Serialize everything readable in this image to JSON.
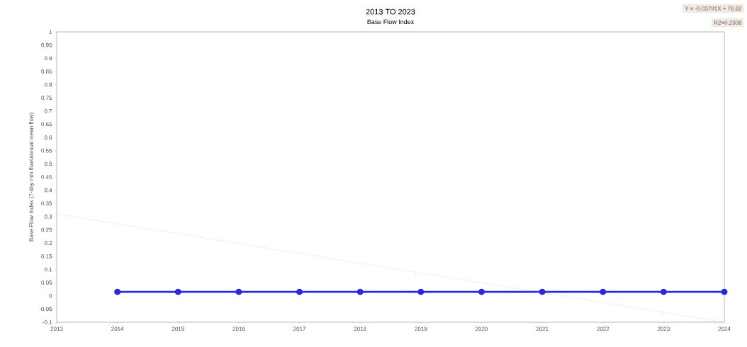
{
  "chart_data": {
    "type": "line",
    "title": "2013 TO 2023",
    "subtitle": "Base Flow Index",
    "ylabel": "Base Flow Index (7-day min flow/annual mean flow)",
    "series": [
      {
        "color": "#2a2ad8",
        "marker": "circle",
        "line_style": "solid",
        "x": [
          2014,
          2015,
          2016,
          2017,
          2018,
          2019,
          2020,
          2021,
          2022,
          2023,
          2024
        ],
        "values": [
          0.015,
          0.015,
          0.015,
          0.015,
          0.015,
          0.015,
          0.015,
          0.015,
          0.015,
          0.015,
          0.015
        ]
      },
      {
        "color": "#888888",
        "marker": "none",
        "line_style": "dotted",
        "x": [
          2013,
          2024
        ],
        "values": [
          0.31,
          -0.1
        ]
      }
    ],
    "xlim": [
      2013,
      2024
    ],
    "xticks": [
      2013,
      2014,
      2015,
      2016,
      2017,
      2018,
      2019,
      2020,
      2021,
      2022,
      2023,
      2024
    ],
    "ylim": [
      -0.1,
      1
    ],
    "yticks": [
      -0.1,
      -0.05,
      0,
      0.05,
      0.1,
      0.15,
      0.2,
      0.25,
      0.3,
      0.35,
      0.4,
      0.45,
      0.5,
      0.55,
      0.6,
      0.65,
      0.7,
      0.75,
      0.8,
      0.85,
      0.9,
      0.95,
      1
    ],
    "grid": false,
    "annotations": [
      "Y = -0.03791X + 76.62",
      "R2=0.2308"
    ]
  }
}
